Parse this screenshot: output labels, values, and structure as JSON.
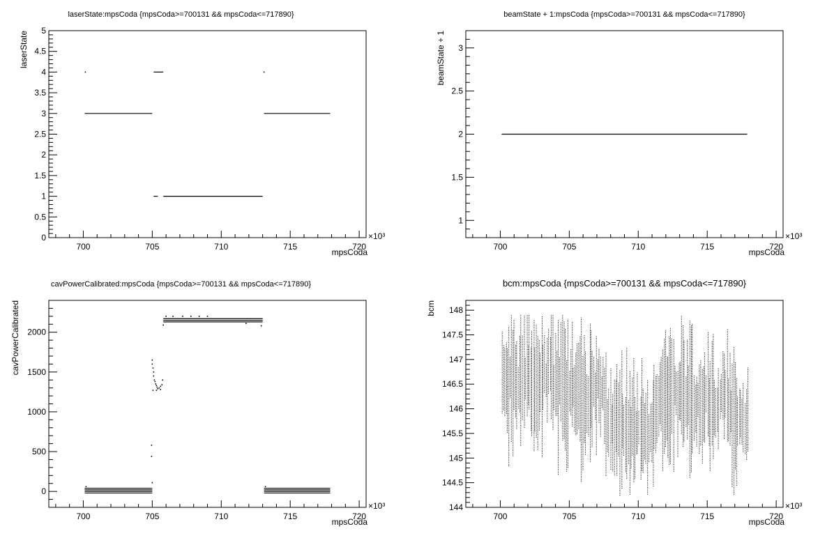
{
  "chart_data": [
    {
      "type": "scatter",
      "title": "laserState:mpsCoda {mpsCoda>=700131 && mpsCoda<=717890}",
      "xlabel": "mpsCoda",
      "ylabel": "laserState",
      "x_multiplier": "×10³",
      "xlim": [
        697.5,
        720.5
      ],
      "ylim": [
        0,
        5
      ],
      "xticks": [
        700,
        705,
        710,
        715,
        720
      ],
      "yticks": [
        0,
        0.5,
        1,
        1.5,
        2,
        2.5,
        3,
        3.5,
        4,
        4.5,
        5
      ],
      "ytick_labels": [
        "0",
        "0.5",
        "1",
        "1.5",
        "2",
        "2.5",
        "3",
        "3.5",
        "4",
        "4.5",
        "5"
      ],
      "segments": [
        {
          "x": [
            700.1,
            705.0
          ],
          "y": 3
        },
        {
          "x": [
            705.1,
            705.8
          ],
          "y": 4
        },
        {
          "x": [
            705.1,
            705.4
          ],
          "y": 1
        },
        {
          "x": [
            705.8,
            713.0
          ],
          "y": 1
        },
        {
          "x": [
            713.1,
            717.9
          ],
          "y": 3
        }
      ],
      "points": [
        {
          "x": 700.15,
          "y": 4
        },
        {
          "x": 713.1,
          "y": 4
        }
      ]
    },
    {
      "type": "scatter",
      "title": "beamState + 1:mpsCoda {mpsCoda>=700131 && mpsCoda<=717890}",
      "xlabel": "mpsCoda",
      "ylabel": "beamState + 1",
      "x_multiplier": "×10³",
      "xlim": [
        697.5,
        720.5
      ],
      "ylim": [
        0.8,
        3.2
      ],
      "xticks": [
        700,
        705,
        710,
        715,
        720
      ],
      "yticks": [
        1,
        1.5,
        2,
        2.5,
        3
      ],
      "ytick_labels": [
        "1",
        "1.5",
        "2",
        "2.5",
        "3"
      ],
      "segments": [
        {
          "x": [
            700.1,
            717.9
          ],
          "y": 2
        }
      ],
      "points": []
    },
    {
      "type": "scatter",
      "title": "cavPowerCalibrated:mpsCoda {mpsCoda>=700131 && mpsCoda<=717890}",
      "xlabel": "mpsCoda",
      "ylabel": "cavPowerCalibrated",
      "x_multiplier": "×10³",
      "xlim": [
        697.5,
        720.5
      ],
      "ylim": [
        -200,
        2400
      ],
      "xticks": [
        700,
        705,
        710,
        715,
        720
      ],
      "yticks": [
        0,
        500,
        1000,
        1500,
        2000
      ],
      "ytick_labels": [
        "0",
        "500",
        "1000",
        "1500",
        "2000"
      ],
      "segments": [
        {
          "x": [
            700.1,
            705.0
          ],
          "y": 40
        },
        {
          "x": [
            700.1,
            705.0
          ],
          "y": 20
        },
        {
          "x": [
            700.1,
            705.0
          ],
          "y": 0
        },
        {
          "x": [
            700.1,
            705.0
          ],
          "y": -20
        },
        {
          "x": [
            705.8,
            713.0
          ],
          "y": 2170
        },
        {
          "x": [
            705.8,
            713.0
          ],
          "y": 2150
        },
        {
          "x": [
            705.8,
            713.0
          ],
          "y": 2130
        },
        {
          "x": [
            713.1,
            717.9
          ],
          "y": 40
        },
        {
          "x": [
            713.1,
            717.9
          ],
          "y": 20
        },
        {
          "x": [
            713.1,
            717.9
          ],
          "y": 0
        },
        {
          "x": [
            713.1,
            717.9
          ],
          "y": -20
        }
      ],
      "points": [
        {
          "x": 705.0,
          "y": 1650
        },
        {
          "x": 705.0,
          "y": 1600
        },
        {
          "x": 705.05,
          "y": 1550
        },
        {
          "x": 705.1,
          "y": 1500
        },
        {
          "x": 705.1,
          "y": 1450
        },
        {
          "x": 705.15,
          "y": 1400
        },
        {
          "x": 705.2,
          "y": 1380
        },
        {
          "x": 705.25,
          "y": 1350
        },
        {
          "x": 705.3,
          "y": 1330
        },
        {
          "x": 705.35,
          "y": 1310
        },
        {
          "x": 705.4,
          "y": 1290
        },
        {
          "x": 705.5,
          "y": 1300
        },
        {
          "x": 705.6,
          "y": 1320
        },
        {
          "x": 705.7,
          "y": 1340
        },
        {
          "x": 705.75,
          "y": 1400
        },
        {
          "x": 705.05,
          "y": 1270
        },
        {
          "x": 705.3,
          "y": 1270
        },
        {
          "x": 705.6,
          "y": 1280
        },
        {
          "x": 704.95,
          "y": 580
        },
        {
          "x": 704.95,
          "y": 440
        },
        {
          "x": 705.0,
          "y": 110
        },
        {
          "x": 706.0,
          "y": 2200
        },
        {
          "x": 706.5,
          "y": 2200
        },
        {
          "x": 707.2,
          "y": 2200
        },
        {
          "x": 707.8,
          "y": 2200
        },
        {
          "x": 708.4,
          "y": 2200
        },
        {
          "x": 709.0,
          "y": 2200
        },
        {
          "x": 705.8,
          "y": 2090
        },
        {
          "x": 711.8,
          "y": 2110
        },
        {
          "x": 712.9,
          "y": 2080
        },
        {
          "x": 700.2,
          "y": 60
        },
        {
          "x": 713.2,
          "y": 60
        }
      ]
    },
    {
      "type": "scatter",
      "title": "bcm:mpsCoda {mpsCoda>=700131 && mpsCoda<=717890}",
      "xlabel": "mpsCoda",
      "ylabel": "bcm",
      "x_multiplier": "×10³",
      "xlim": [
        697.5,
        720.5
      ],
      "ylim": [
        144,
        148.2
      ],
      "xticks": [
        700,
        705,
        710,
        715,
        720
      ],
      "yticks": [
        144,
        144.5,
        145,
        145.5,
        146,
        146.5,
        147,
        147.5,
        148
      ],
      "ytick_labels": [
        "144",
        "144.5",
        "145",
        "145.5",
        "146",
        "146.5",
        "147",
        "147.5",
        "148"
      ],
      "range_x": [
        700.1,
        717.9
      ],
      "range_note": "dense vertical point columns, ~145–147.5",
      "points": []
    }
  ]
}
